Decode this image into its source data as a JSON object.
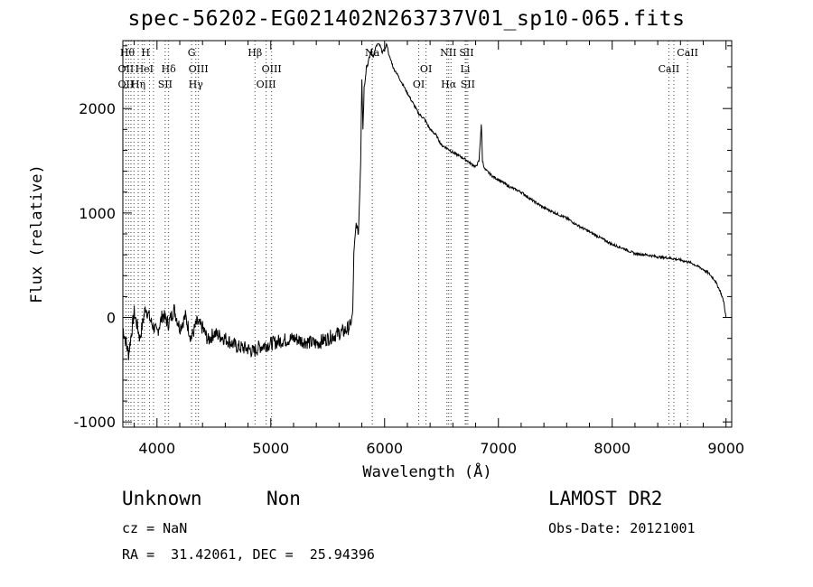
{
  "chart_data": {
    "type": "line",
    "title": "spec-56202-EG021402N263737V01_sp10-065.fits",
    "xlabel": "Wavelength (Å)",
    "ylabel": "Flux (relative)",
    "xlim": [
      3700,
      9050
    ],
    "ylim": [
      -1050,
      2650
    ],
    "xticks": [
      4000,
      5000,
      6000,
      7000,
      8000,
      9000
    ],
    "yticks": [
      -1000,
      0,
      1000,
      2000
    ],
    "x_tick_labels": [
      "4000",
      "5000",
      "6000",
      "7000",
      "8000",
      "9000"
    ],
    "y_tick_labels": [
      "-1000",
      "0",
      "1000",
      "2000"
    ],
    "grid": false,
    "series": [
      {
        "x": [
          3700,
          3750,
          3800,
          3850,
          3900,
          3950,
          4000,
          4050,
          4100,
          4150,
          4200,
          4250,
          4300,
          4350,
          4400,
          4450,
          4500,
          4600,
          4700,
          4800,
          4850,
          4900,
          5000,
          5100,
          5200,
          5300,
          5400,
          5500,
          5600,
          5650,
          5700,
          5720,
          5730,
          5750,
          5770,
          5790,
          5800,
          5810,
          5820,
          5840,
          5860,
          5880,
          5900,
          5920,
          5940,
          5960,
          5980,
          6000,
          6020,
          6040,
          6060,
          6080,
          6100,
          6150,
          6200,
          6250,
          6300,
          6350,
          6400,
          6450,
          6500,
          6550,
          6600,
          6650,
          6700,
          6750,
          6800,
          6830,
          6850,
          6860,
          6880,
          6900,
          6950,
          7000,
          7100,
          7200,
          7300,
          7400,
          7500,
          7600,
          7700,
          7800,
          7900,
          8000,
          8100,
          8200,
          8300,
          8400,
          8500,
          8600,
          8700,
          8800,
          8850,
          8900,
          8950,
          8980,
          9000
        ],
        "y": [
          -100,
          -350,
          50,
          -200,
          100,
          -50,
          -150,
          30,
          -60,
          80,
          -100,
          10,
          -200,
          -50,
          -100,
          -220,
          -150,
          -200,
          -280,
          -300,
          -330,
          -280,
          -250,
          -220,
          -200,
          -230,
          -250,
          -200,
          -150,
          -130,
          -80,
          50,
          600,
          900,
          800,
          1500,
          2300,
          1800,
          2200,
          2400,
          2450,
          2550,
          2500,
          2580,
          2620,
          2600,
          2540,
          2560,
          2620,
          2500,
          2450,
          2380,
          2350,
          2250,
          2150,
          2050,
          1950,
          1900,
          1800,
          1750,
          1650,
          1620,
          1580,
          1550,
          1520,
          1480,
          1440,
          1500,
          1850,
          1500,
          1420,
          1400,
          1350,
          1320,
          1250,
          1200,
          1120,
          1050,
          1000,
          950,
          880,
          820,
          760,
          700,
          660,
          610,
          600,
          580,
          570,
          550,
          520,
          460,
          420,
          360,
          250,
          150,
          0
        ]
      }
    ],
    "lines": [
      {
        "x": 3727,
        "labels": [
          "OII",
          "OII"
        ]
      },
      {
        "x": 3750,
        "labels": [
          "Hθ",
          ""
        ]
      },
      {
        "x": 3771,
        "labels": [
          "",
          ""
        ]
      },
      {
        "x": 3798,
        "labels": [
          "",
          ""
        ]
      },
      {
        "x": 3835,
        "labels": [
          "",
          "Hη"
        ]
      },
      {
        "x": 3869,
        "labels": [
          "",
          ""
        ]
      },
      {
        "x": 3889,
        "labels": [
          "HeI",
          ""
        ]
      },
      {
        "x": 3934,
        "labels": [
          "",
          ""
        ]
      },
      {
        "x": 3969,
        "labels": [
          "H",
          ""
        ]
      },
      {
        "x": 4072,
        "labels": [
          "",
          "SII"
        ]
      },
      {
        "x": 4102,
        "labels": [
          "Hδ",
          ""
        ]
      },
      {
        "x": 4304,
        "labels": [
          "G",
          ""
        ]
      },
      {
        "x": 4341,
        "labels": [
          "Hγ",
          ""
        ]
      },
      {
        "x": 4364,
        "labels": [
          "OIII",
          ""
        ]
      },
      {
        "x": 4861,
        "labels": [
          "Hβ",
          ""
        ]
      },
      {
        "x": 4959,
        "labels": [
          "OIII",
          "OIII"
        ]
      },
      {
        "x": 5007,
        "labels": [
          "",
          ""
        ]
      },
      {
        "x": 5892,
        "labels": [
          "Na",
          ""
        ]
      },
      {
        "x": 6300,
        "labels": [
          "OI",
          "OI"
        ]
      },
      {
        "x": 6364,
        "labels": [
          "",
          ""
        ]
      },
      {
        "x": 6548,
        "labels": [
          "NII",
          ""
        ]
      },
      {
        "x": 6563,
        "labels": [
          "Hα",
          ""
        ]
      },
      {
        "x": 6583,
        "labels": [
          "",
          ""
        ]
      },
      {
        "x": 6708,
        "labels": [
          "Li",
          ""
        ]
      },
      {
        "x": 6717,
        "labels": [
          "SII",
          "SII"
        ]
      },
      {
        "x": 6731,
        "labels": [
          "",
          ""
        ]
      },
      {
        "x": 8498,
        "labels": [
          "CaII",
          ""
        ]
      },
      {
        "x": 8542,
        "labels": [
          "",
          ""
        ]
      },
      {
        "x": 8662,
        "labels": [
          "CaII",
          ""
        ]
      }
    ],
    "line_labels": [
      {
        "text": "Hθ",
        "x": 3740,
        "row": 0
      },
      {
        "text": "H",
        "x": 3900,
        "row": 0
      },
      {
        "text": "G",
        "x": 4304,
        "row": 0
      },
      {
        "text": "Hβ",
        "x": 4861,
        "row": 0
      },
      {
        "text": "Na",
        "x": 5892,
        "row": 0
      },
      {
        "text": "NII",
        "x": 6560,
        "row": 0
      },
      {
        "text": "SII",
        "x": 6720,
        "row": 0
      },
      {
        "text": "CaII",
        "x": 8662,
        "row": 0
      },
      {
        "text": "OII",
        "x": 3727,
        "row": 1
      },
      {
        "text": "HeI",
        "x": 3889,
        "row": 1
      },
      {
        "text": "Hδ",
        "x": 4102,
        "row": 1
      },
      {
        "text": "OIII",
        "x": 4364,
        "row": 1
      },
      {
        "text": "OIII",
        "x": 5007,
        "row": 1
      },
      {
        "text": "OI",
        "x": 6364,
        "row": 1
      },
      {
        "text": "Li",
        "x": 6708,
        "row": 1
      },
      {
        "text": "CaII",
        "x": 8498,
        "row": 1
      },
      {
        "text": "OII",
        "x": 3727,
        "row": 2
      },
      {
        "text": "Hη",
        "x": 3835,
        "row": 2
      },
      {
        "text": "SII",
        "x": 4072,
        "row": 2
      },
      {
        "text": "Hγ",
        "x": 4341,
        "row": 2
      },
      {
        "text": "OIII",
        "x": 4959,
        "row": 2
      },
      {
        "text": "OI",
        "x": 6300,
        "row": 2
      },
      {
        "text": "Hα",
        "x": 6563,
        "row": 2
      },
      {
        "text": "SII",
        "x": 6731,
        "row": 2
      }
    ],
    "line_color": "#cc0000"
  },
  "info": {
    "class_label": "Unknown",
    "subclass_label": "Non",
    "survey": "LAMOST DR2",
    "cz": "cz = NaN",
    "obs_date": "Obs-Date: 20121001",
    "coords": "RA =  31.42061, DEC =  25.94396"
  }
}
